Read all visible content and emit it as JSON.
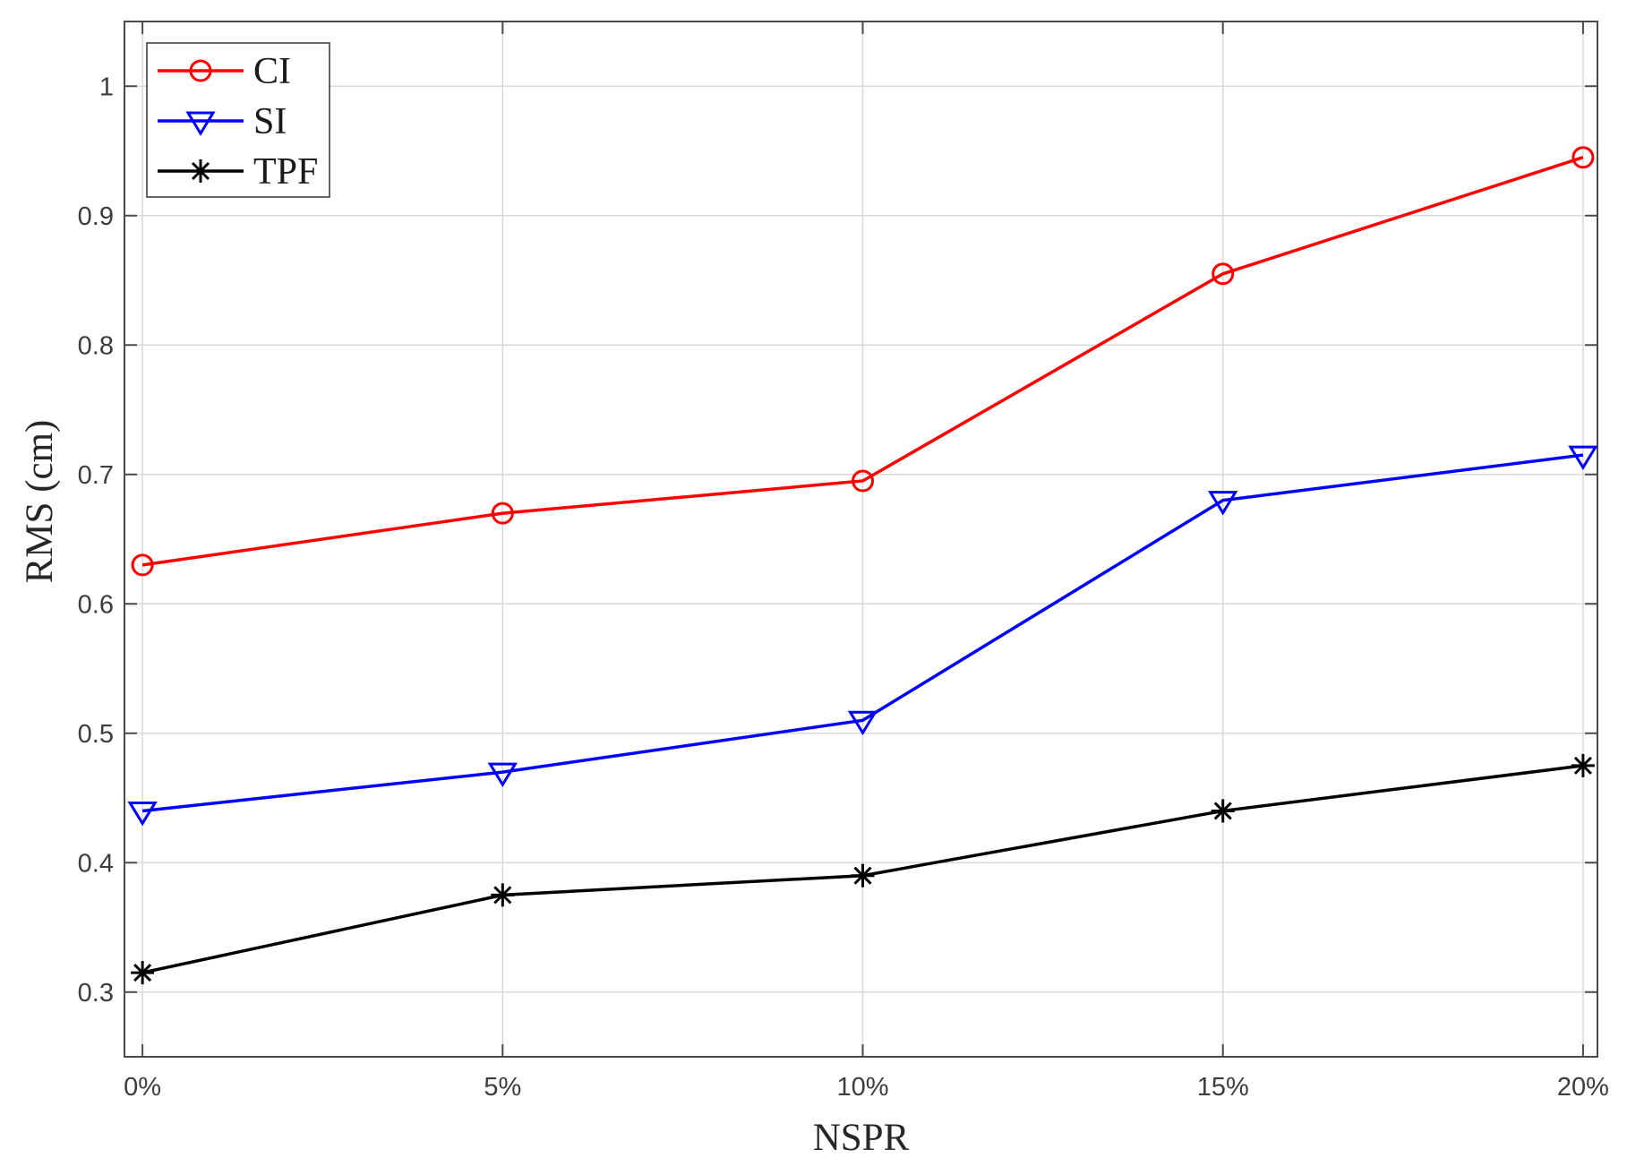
{
  "figure": {
    "background": "#ffffff"
  },
  "chart_data": {
    "type": "line",
    "title": "",
    "xlabel": "NSPR",
    "ylabel": "RMS (cm)",
    "categories": [
      "0%",
      "5%",
      "10%",
      "15%",
      "20%"
    ],
    "series": [
      {
        "name": "CI",
        "color": "#ff0000",
        "marker": "circle",
        "values": [
          0.63,
          0.67,
          0.695,
          0.855,
          0.945
        ]
      },
      {
        "name": "SI",
        "color": "#0000ff",
        "marker": "triangle-down",
        "values": [
          0.44,
          0.47,
          0.51,
          0.68,
          0.715
        ]
      },
      {
        "name": "TPF",
        "color": "#000000",
        "marker": "asterisk",
        "values": [
          0.315,
          0.375,
          0.39,
          0.44,
          0.475
        ]
      }
    ],
    "ylim": [
      0.25,
      1.05
    ],
    "yticks": [
      {
        "v": 0.3,
        "label": "0.3"
      },
      {
        "v": 0.4,
        "label": "0.4"
      },
      {
        "v": 0.5,
        "label": "0.5"
      },
      {
        "v": 0.6,
        "label": "0.6"
      },
      {
        "v": 0.7,
        "label": "0.7"
      },
      {
        "v": 0.8,
        "label": "0.8"
      },
      {
        "v": 0.9,
        "label": "0.9"
      },
      {
        "v": 1.0,
        "label": "1"
      }
    ],
    "grid": true,
    "legend_position": "top-left",
    "colors": {
      "grid": "#d9d9d9",
      "axis": "#4a4a4a",
      "tick_text": "#3d3d3d",
      "label_text": "#262626"
    }
  }
}
